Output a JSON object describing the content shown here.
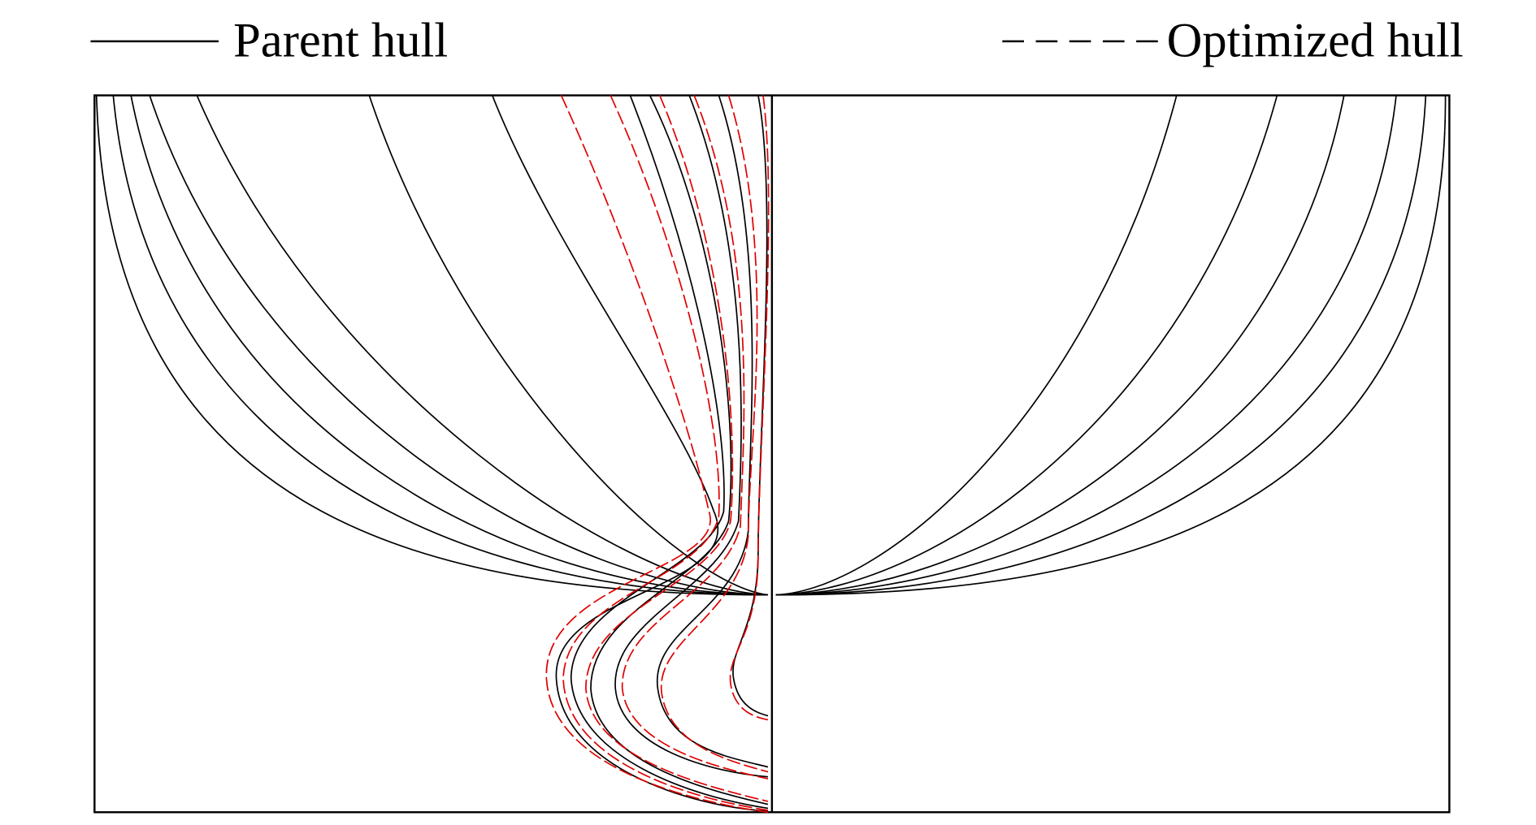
{
  "legend": {
    "parent": "Parent hull",
    "optimized": "Optimized hull"
  }
}
